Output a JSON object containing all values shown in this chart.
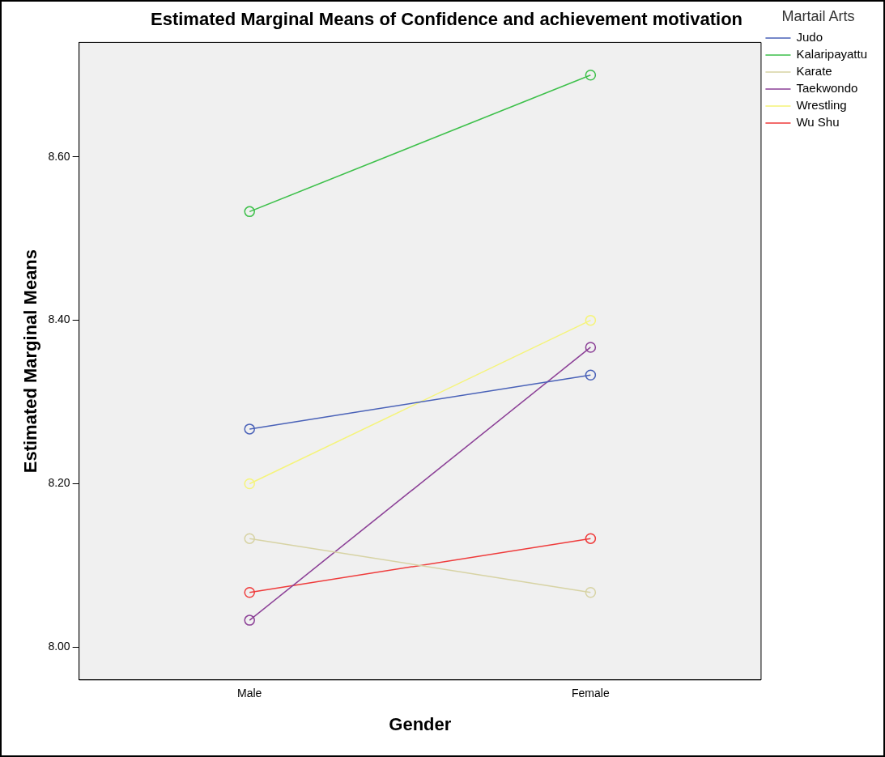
{
  "chart_data": {
    "type": "line",
    "title": "Estimated Marginal Means of Confidence and achievement motivation",
    "xlabel": "Gender",
    "ylabel": "Estimated Marginal Means",
    "legend_title": "Martail Arts",
    "legend": "top right",
    "marker": "circle",
    "grid": false,
    "categories": [
      "Male",
      "Female"
    ],
    "ylim": [
      7.96,
      8.74
    ],
    "yticks": [
      {
        "value": 8,
        "label": "8.00"
      },
      {
        "value": 8.2,
        "label": "8.20"
      },
      {
        "value": 8.4,
        "label": "8.40"
      },
      {
        "value": 8.6,
        "label": "8.60"
      }
    ],
    "series": [
      {
        "name": "Judo",
        "color": "#4a62b8",
        "values": [
          8.267,
          8.333
        ]
      },
      {
        "name": "Kalaripayattu",
        "color": "#3ec04b",
        "values": [
          8.533,
          8.7
        ]
      },
      {
        "name": "Karate",
        "color": "#d7d3a4",
        "values": [
          8.133,
          8.067
        ]
      },
      {
        "name": "Taekwondo",
        "color": "#8b3f96",
        "values": [
          8.033,
          8.367
        ]
      },
      {
        "name": "Wrestling",
        "color": "#f5f47a",
        "values": [
          8.2,
          8.4
        ]
      },
      {
        "name": "Wu Shu",
        "color": "#ef3b3b",
        "values": [
          8.067,
          8.133
        ]
      }
    ]
  }
}
